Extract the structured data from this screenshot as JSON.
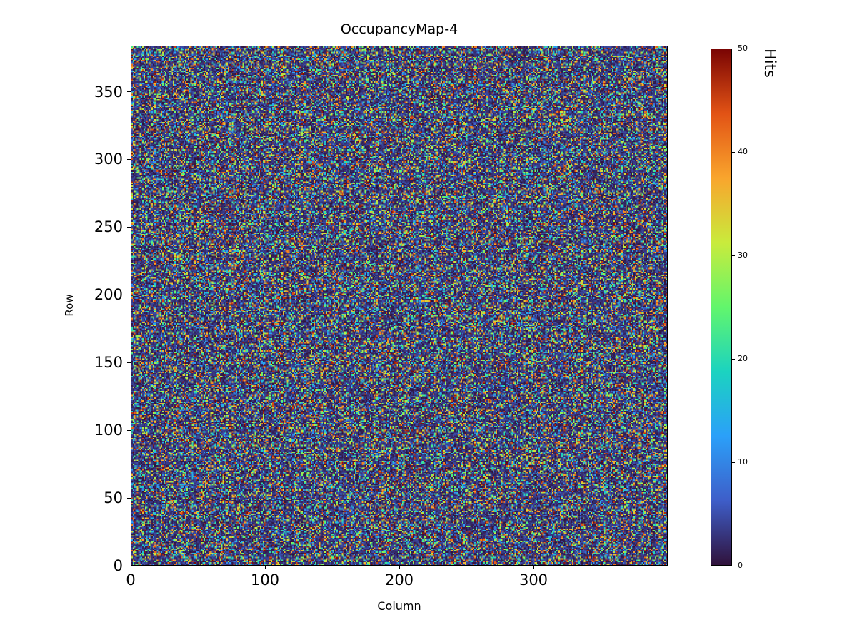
{
  "chart_data": {
    "type": "heatmap",
    "title": "OccupancyMap-4",
    "xlabel": "Column",
    "ylabel": "Row",
    "colorbar_label": "Hits",
    "xlim": [
      0,
      400
    ],
    "ylim": [
      0,
      384
    ],
    "zlim": [
      0,
      50
    ],
    "xticks": [
      0,
      100,
      200,
      300
    ],
    "yticks": [
      0,
      50,
      100,
      150,
      200,
      250,
      300,
      350
    ],
    "colorbar_ticks": [
      0,
      10,
      20,
      30,
      40,
      50
    ],
    "grid_cols": 400,
    "grid_rows": 384,
    "values_description": "Per-pixel random hit counts with no spatial structure: roughly 60% of pixels are low (0-5 hits, dark), the remainder spread uniformly 0-50 hits producing scattered blue/cyan/green/orange/red speckles",
    "colormap": "turbo",
    "colormap_stops": [
      {
        "t": 0.0,
        "color": "#30123b"
      },
      {
        "t": 0.125,
        "color": "#3e5ec9"
      },
      {
        "t": 0.25,
        "color": "#2ba0f9"
      },
      {
        "t": 0.375,
        "color": "#1bd3c0"
      },
      {
        "t": 0.5,
        "color": "#62f66c"
      },
      {
        "t": 0.625,
        "color": "#c9eb3c"
      },
      {
        "t": 0.75,
        "color": "#f9a52d"
      },
      {
        "t": 0.875,
        "color": "#e25315"
      },
      {
        "t": 1.0,
        "color": "#7a0403"
      }
    ],
    "random_seed": 42,
    "dark_fraction": 0.6,
    "dark_max": 5,
    "grid": false,
    "legend": "none",
    "colorbar_position": "right"
  }
}
